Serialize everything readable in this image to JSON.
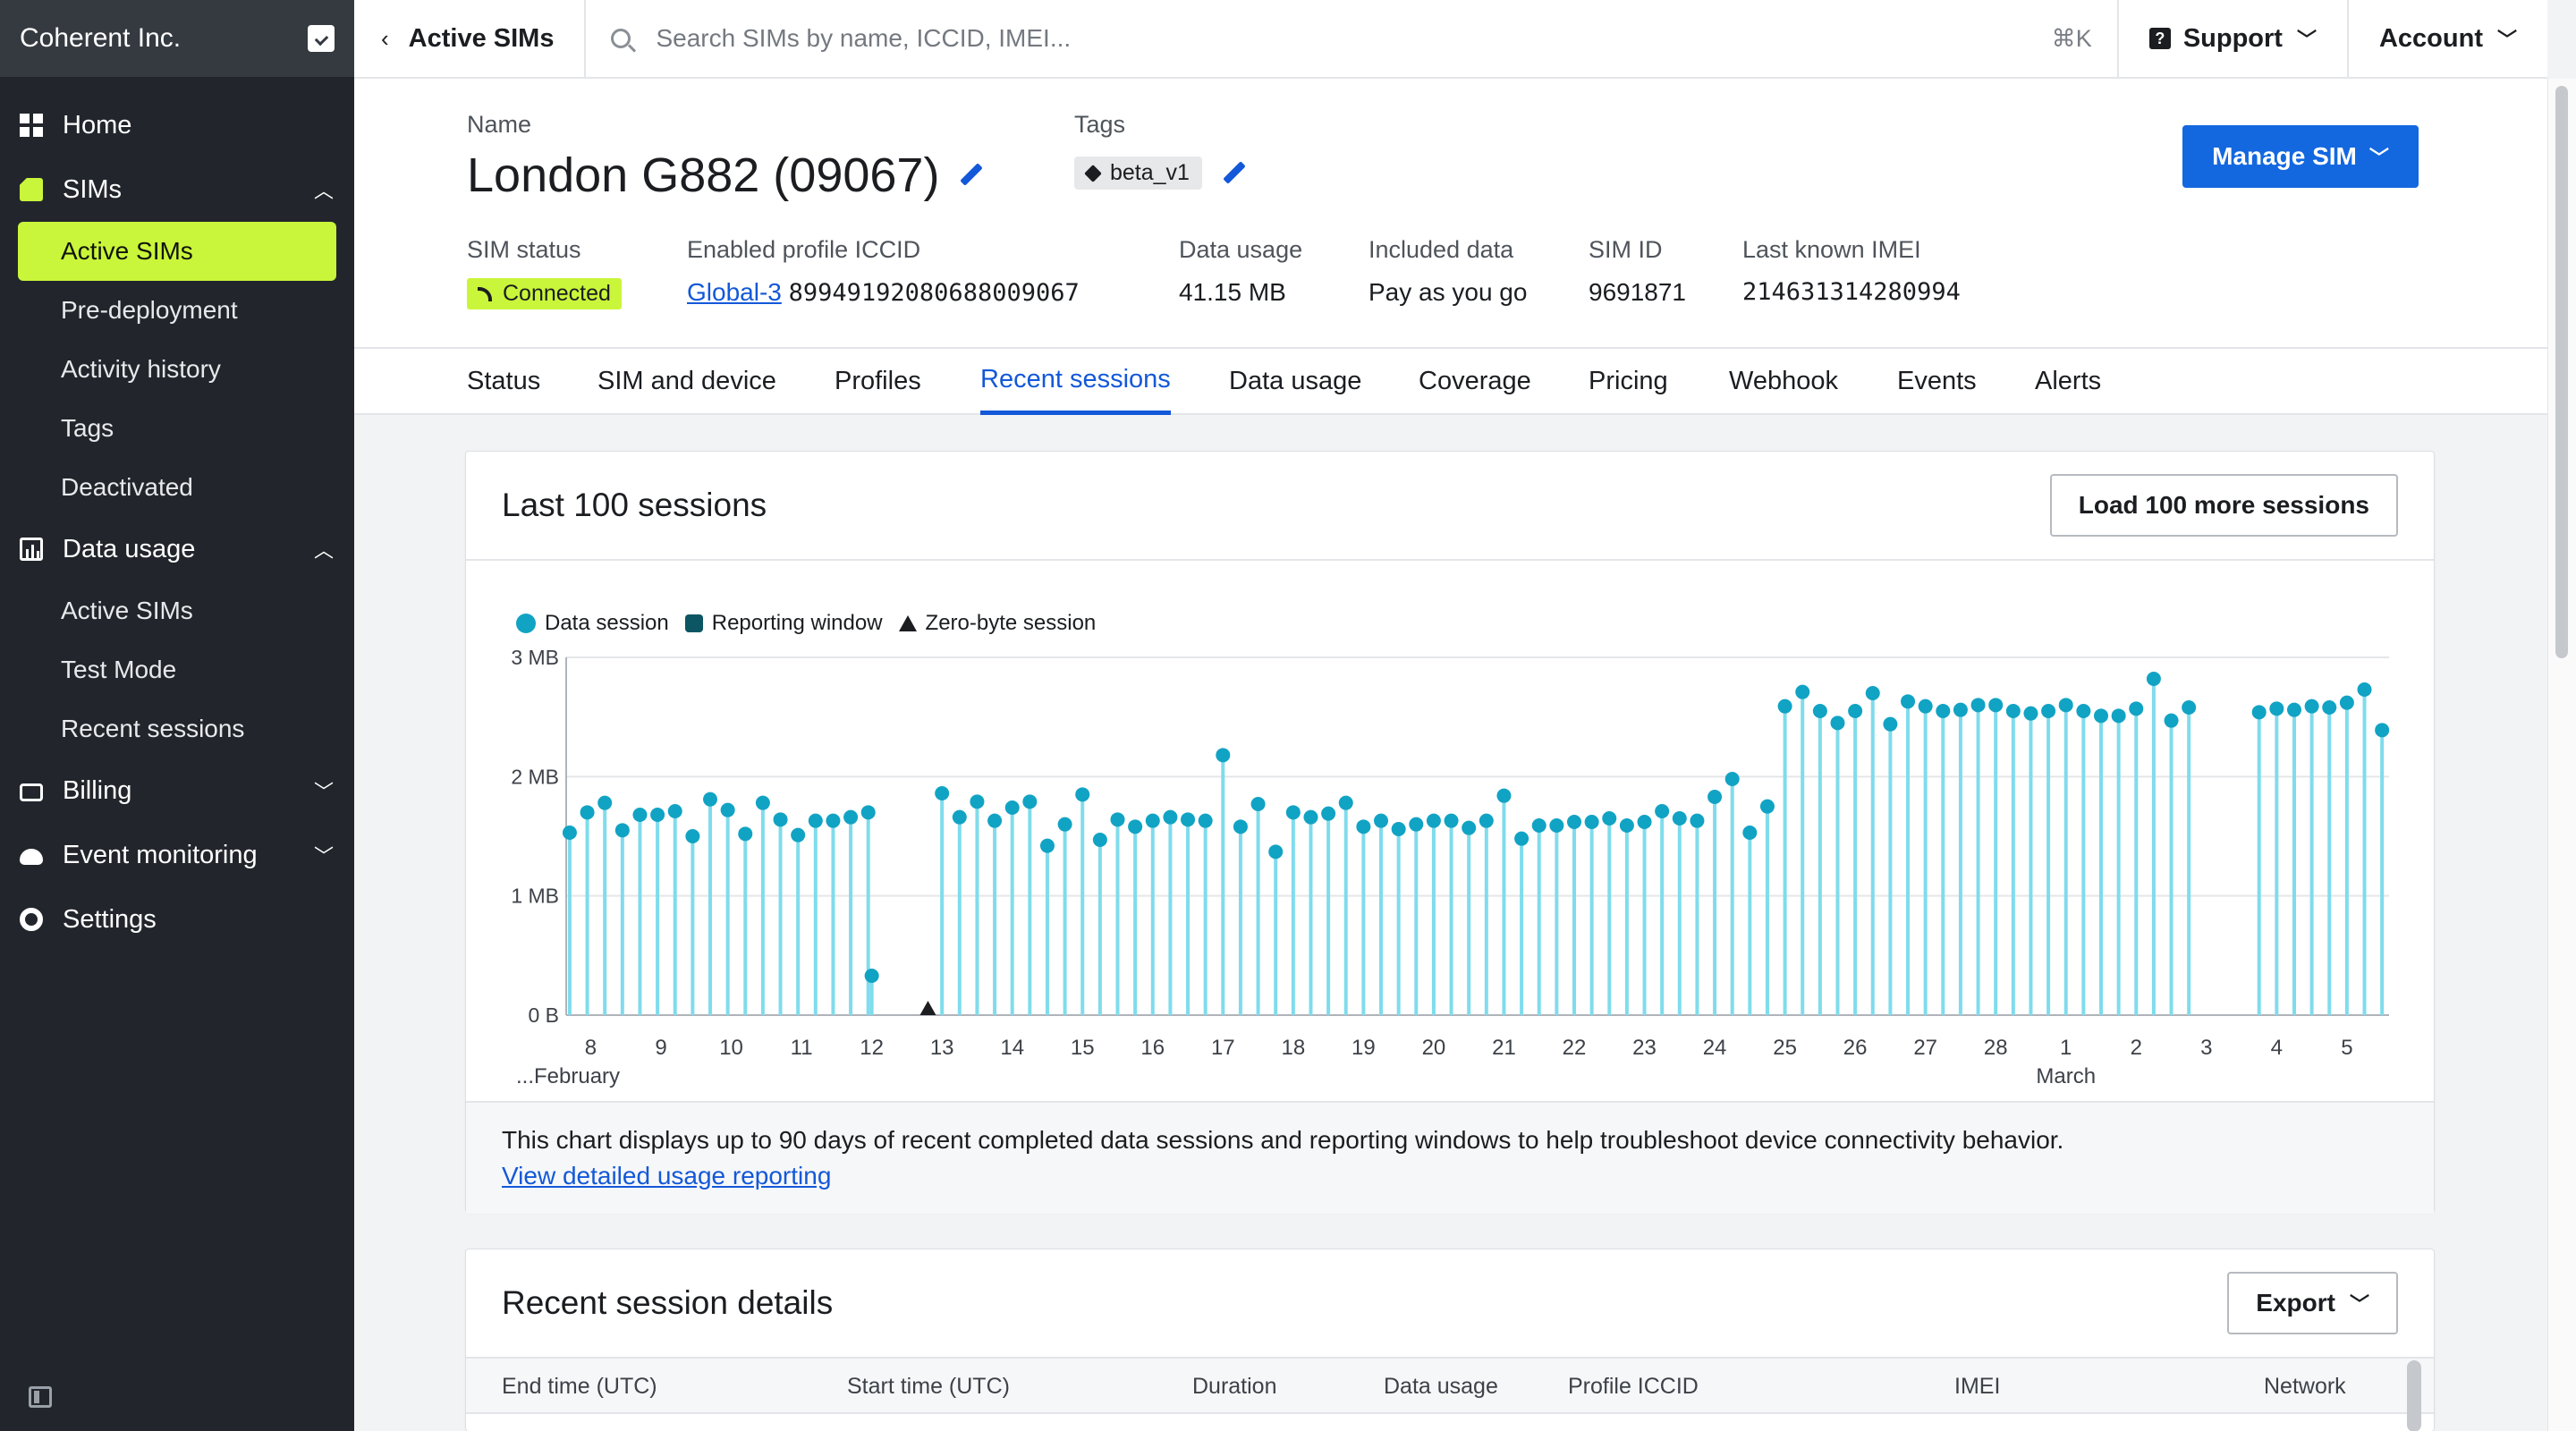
{
  "sidebar": {
    "org_name": "Coherent Inc.",
    "items": [
      {
        "label": "Home"
      },
      {
        "label": "SIMs",
        "children": [
          "Active SIMs",
          "Pre-deployment",
          "Activity history",
          "Tags",
          "Deactivated"
        ]
      },
      {
        "label": "Data usage",
        "children": [
          "Active SIMs",
          "Test Mode",
          "Recent sessions"
        ]
      },
      {
        "label": "Billing"
      },
      {
        "label": "Event monitoring"
      },
      {
        "label": "Settings"
      }
    ],
    "active_item": "Active SIMs"
  },
  "topbar": {
    "back_label": "Active SIMs",
    "search_placeholder": "Search SIMs by name, ICCID, IMEI...",
    "shortcut": "⌘K",
    "support_label": "Support",
    "account_label": "Account"
  },
  "sim": {
    "name_label": "Name",
    "name": "London G882 (09067)",
    "tags_label": "Tags",
    "tag": "beta_v1",
    "manage_label": "Manage SIM",
    "fields": {
      "status_label": "SIM status",
      "status": "Connected",
      "iccid_label": "Enabled profile ICCID",
      "iccid_profile": "Global-3",
      "iccid": "89949192080688009067",
      "usage_label": "Data usage",
      "usage": "41.15 MB",
      "included_label": "Included data",
      "included": "Pay as you go",
      "simid_label": "SIM ID",
      "simid": "9691871",
      "imei_label": "Last known IMEI",
      "imei": "214631314280994"
    }
  },
  "tabs": [
    "Status",
    "SIM and device",
    "Profiles",
    "Recent sessions",
    "Data usage",
    "Coverage",
    "Pricing",
    "Webhook",
    "Events",
    "Alerts"
  ],
  "active_tab": "Recent sessions",
  "sessions_card": {
    "title": "Last 100 sessions",
    "load_more_label": "Load 100 more sessions",
    "footer_text": "This chart displays up to 90 days of recent completed data sessions and reporting windows to help troubleshoot device connectivity behavior.",
    "footer_link": "View detailed usage reporting"
  },
  "chart_data": {
    "type": "scatter",
    "legend": [
      "Data session",
      "Reporting window",
      "Zero-byte session"
    ],
    "legend_placement": "top-left",
    "y_ticks": [
      "0 B",
      "1 MB",
      "2 MB",
      "3 MB"
    ],
    "ylim": [
      0,
      3
    ],
    "y_unit": "MB",
    "x_ticks": [
      "8",
      "9",
      "10",
      "11",
      "12",
      "13",
      "14",
      "15",
      "16",
      "17",
      "18",
      "19",
      "20",
      "21",
      "22",
      "23",
      "24",
      "25",
      "26",
      "27",
      "28",
      "1",
      "2",
      "3",
      "4",
      "5"
    ],
    "x_month_labels": [
      "...February",
      "March"
    ],
    "grid": true,
    "colors": {
      "data_session": "#11a3c4",
      "stem": "#7fdcec",
      "zero_byte": "#1b1d21"
    },
    "sessions": [
      {
        "x": 7.7,
        "y": 1.53
      },
      {
        "x": 7.95,
        "y": 1.7
      },
      {
        "x": 8.2,
        "y": 1.78
      },
      {
        "x": 8.45,
        "y": 1.55
      },
      {
        "x": 8.7,
        "y": 1.68
      },
      {
        "x": 8.95,
        "y": 1.68
      },
      {
        "x": 9.2,
        "y": 1.71
      },
      {
        "x": 9.45,
        "y": 1.5
      },
      {
        "x": 9.7,
        "y": 1.81
      },
      {
        "x": 9.95,
        "y": 1.72
      },
      {
        "x": 10.2,
        "y": 1.52
      },
      {
        "x": 10.45,
        "y": 1.78
      },
      {
        "x": 10.7,
        "y": 1.64
      },
      {
        "x": 10.95,
        "y": 1.51
      },
      {
        "x": 11.2,
        "y": 1.63
      },
      {
        "x": 11.45,
        "y": 1.63
      },
      {
        "x": 11.7,
        "y": 1.66
      },
      {
        "x": 11.95,
        "y": 1.7
      },
      {
        "x": 12.0,
        "y": 0.33
      },
      {
        "x": 13.0,
        "y": 1.86
      },
      {
        "x": 13.25,
        "y": 1.66
      },
      {
        "x": 13.5,
        "y": 1.79
      },
      {
        "x": 13.75,
        "y": 1.63
      },
      {
        "x": 14.0,
        "y": 1.74
      },
      {
        "x": 14.25,
        "y": 1.79
      },
      {
        "x": 14.5,
        "y": 1.42
      },
      {
        "x": 14.75,
        "y": 1.6
      },
      {
        "x": 15.0,
        "y": 1.85
      },
      {
        "x": 15.25,
        "y": 1.47
      },
      {
        "x": 15.5,
        "y": 1.64
      },
      {
        "x": 15.75,
        "y": 1.58
      },
      {
        "x": 16.0,
        "y": 1.63
      },
      {
        "x": 16.25,
        "y": 1.66
      },
      {
        "x": 16.5,
        "y": 1.64
      },
      {
        "x": 16.75,
        "y": 1.63
      },
      {
        "x": 17.0,
        "y": 2.18
      },
      {
        "x": 17.25,
        "y": 1.58
      },
      {
        "x": 17.5,
        "y": 1.77
      },
      {
        "x": 17.75,
        "y": 1.37
      },
      {
        "x": 18.0,
        "y": 1.7
      },
      {
        "x": 18.25,
        "y": 1.66
      },
      {
        "x": 18.5,
        "y": 1.69
      },
      {
        "x": 18.75,
        "y": 1.78
      },
      {
        "x": 19.0,
        "y": 1.58
      },
      {
        "x": 19.25,
        "y": 1.63
      },
      {
        "x": 19.5,
        "y": 1.56
      },
      {
        "x": 19.75,
        "y": 1.6
      },
      {
        "x": 20.0,
        "y": 1.63
      },
      {
        "x": 20.25,
        "y": 1.63
      },
      {
        "x": 20.5,
        "y": 1.57
      },
      {
        "x": 20.75,
        "y": 1.63
      },
      {
        "x": 21.0,
        "y": 1.84
      },
      {
        "x": 21.25,
        "y": 1.48
      },
      {
        "x": 21.5,
        "y": 1.59
      },
      {
        "x": 21.75,
        "y": 1.59
      },
      {
        "x": 22.0,
        "y": 1.62
      },
      {
        "x": 22.25,
        "y": 1.62
      },
      {
        "x": 22.5,
        "y": 1.65
      },
      {
        "x": 22.75,
        "y": 1.59
      },
      {
        "x": 23.0,
        "y": 1.62
      },
      {
        "x": 23.25,
        "y": 1.71
      },
      {
        "x": 23.5,
        "y": 1.65
      },
      {
        "x": 23.75,
        "y": 1.63
      },
      {
        "x": 24.0,
        "y": 1.83
      },
      {
        "x": 24.25,
        "y": 1.98
      },
      {
        "x": 24.5,
        "y": 1.53
      },
      {
        "x": 24.75,
        "y": 1.75
      },
      {
        "x": 25.0,
        "y": 2.59
      },
      {
        "x": 25.25,
        "y": 2.71
      },
      {
        "x": 25.5,
        "y": 2.55
      },
      {
        "x": 25.75,
        "y": 2.45
      },
      {
        "x": 26.0,
        "y": 2.55
      },
      {
        "x": 26.25,
        "y": 2.7
      },
      {
        "x": 26.5,
        "y": 2.44
      },
      {
        "x": 26.75,
        "y": 2.63
      },
      {
        "x": 27.0,
        "y": 2.59
      },
      {
        "x": 27.25,
        "y": 2.55
      },
      {
        "x": 27.5,
        "y": 2.56
      },
      {
        "x": 27.75,
        "y": 2.6
      },
      {
        "x": 28.0,
        "y": 2.6
      },
      {
        "x": 28.25,
        "y": 2.55
      },
      {
        "x": 28.5,
        "y": 2.53
      },
      {
        "x": 28.75,
        "y": 2.55
      },
      {
        "x": 29.0,
        "y": 2.6
      },
      {
        "x": 29.25,
        "y": 2.55
      },
      {
        "x": 29.5,
        "y": 2.51
      },
      {
        "x": 29.75,
        "y": 2.51
      },
      {
        "x": 30.0,
        "y": 2.57
      },
      {
        "x": 30.25,
        "y": 2.82
      },
      {
        "x": 30.5,
        "y": 2.47
      },
      {
        "x": 30.75,
        "y": 2.58
      },
      {
        "x": 31.75,
        "y": 2.54
      },
      {
        "x": 32.0,
        "y": 2.57
      },
      {
        "x": 32.25,
        "y": 2.56
      },
      {
        "x": 32.5,
        "y": 2.59
      },
      {
        "x": 32.75,
        "y": 2.58
      },
      {
        "x": 33.0,
        "y": 2.62
      },
      {
        "x": 33.25,
        "y": 2.73
      },
      {
        "x": 33.5,
        "y": 2.39
      }
    ],
    "zero_byte_sessions": [
      {
        "x": 12.8,
        "y": 0
      }
    ]
  },
  "details_card": {
    "title": "Recent session details",
    "export_label": "Export",
    "columns": [
      "End time (UTC)",
      "Start time (UTC)",
      "Duration",
      "Data usage",
      "Profile ICCID",
      "IMEI",
      "Network"
    ]
  }
}
